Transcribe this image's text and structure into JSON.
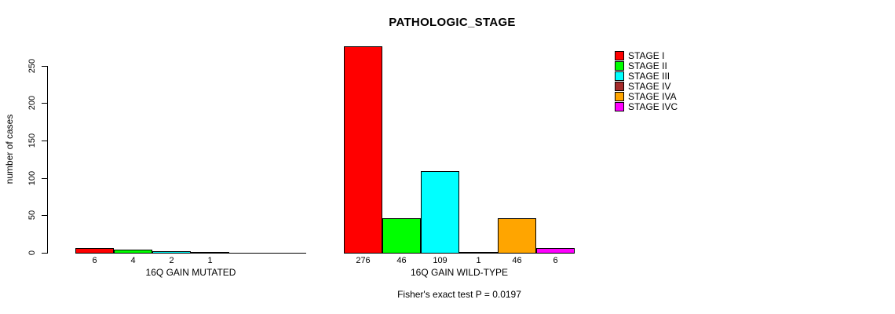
{
  "chart_data": {
    "type": "bar",
    "title": "PATHOLOGIC_STAGE",
    "ylabel": "number of cases",
    "xlabel": "",
    "ylim": [
      0,
      276
    ],
    "yticks": [
      0,
      50,
      100,
      150,
      200,
      250
    ],
    "grid": false,
    "legend_position": "right-outside",
    "categories": [
      "16Q GAIN MUTATED",
      "16Q GAIN WILD-TYPE"
    ],
    "series": [
      {
        "name": "STAGE I",
        "color": "#FF0000",
        "values": [
          6,
          276
        ]
      },
      {
        "name": "STAGE II",
        "color": "#00FF00",
        "values": [
          4,
          46
        ]
      },
      {
        "name": "STAGE III",
        "color": "#00FFFF",
        "values": [
          2,
          109
        ]
      },
      {
        "name": "STAGE IV",
        "color": "#A52A2A",
        "values": [
          1,
          1
        ]
      },
      {
        "name": "STAGE IVA",
        "color": "#FFA500",
        "values": [
          0,
          46
        ]
      },
      {
        "name": "STAGE IVC",
        "color": "#FF00FF",
        "values": [
          0,
          6
        ]
      }
    ],
    "annotation": "Fisher's exact test P = 0.0197"
  }
}
